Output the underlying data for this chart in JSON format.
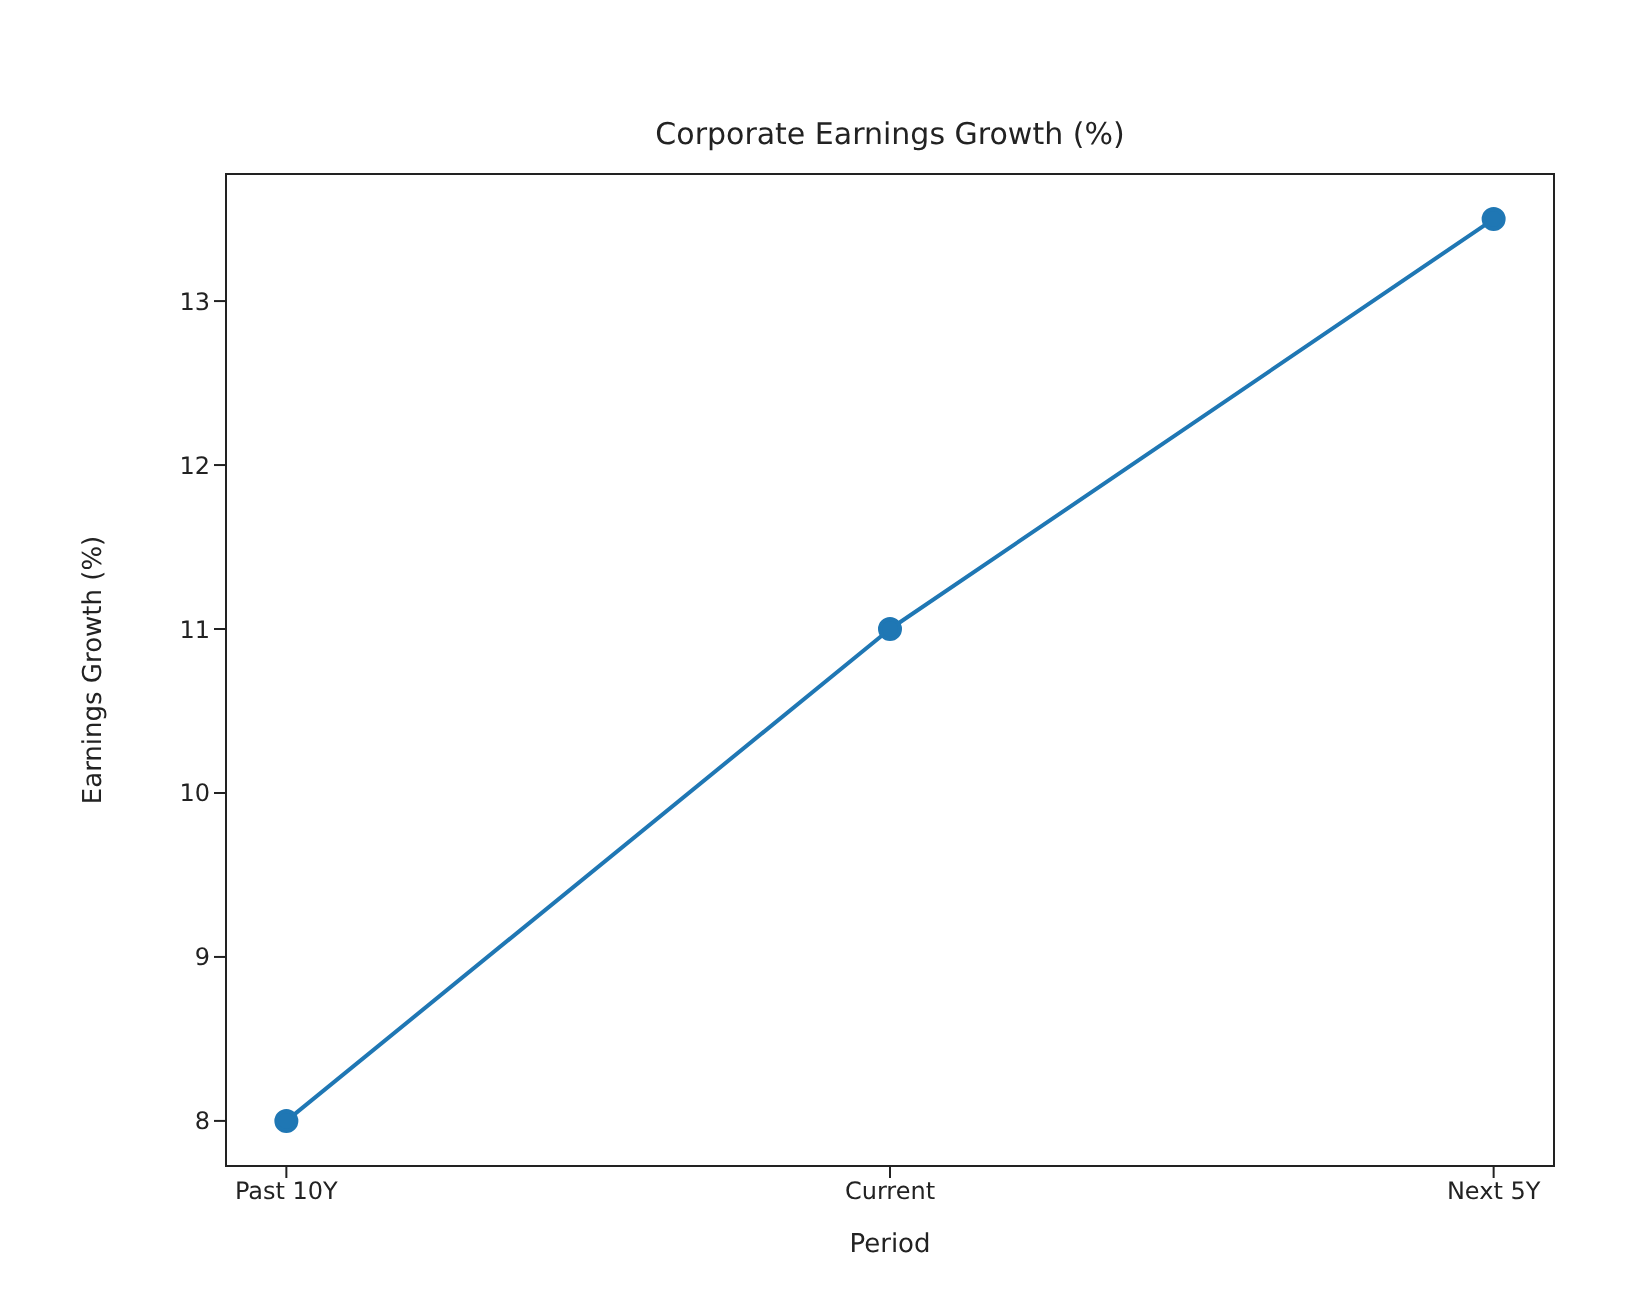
{
  "chart_data": {
    "type": "line",
    "title": "Corporate Earnings Growth (%)",
    "xlabel": "Period",
    "ylabel": "Earnings Growth (%)",
    "categories": [
      "Past 10Y",
      "Current",
      "Next 5Y"
    ],
    "series": [
      {
        "color": "#1f77b4",
        "values": [
          8,
          11,
          13.5
        ]
      }
    ],
    "ylim": [
      7.725,
      13.775
    ],
    "yticks": [
      8,
      9,
      10,
      11,
      12,
      13
    ],
    "grid": false,
    "legend": false,
    "marker": "circle",
    "line_style": "solid"
  }
}
